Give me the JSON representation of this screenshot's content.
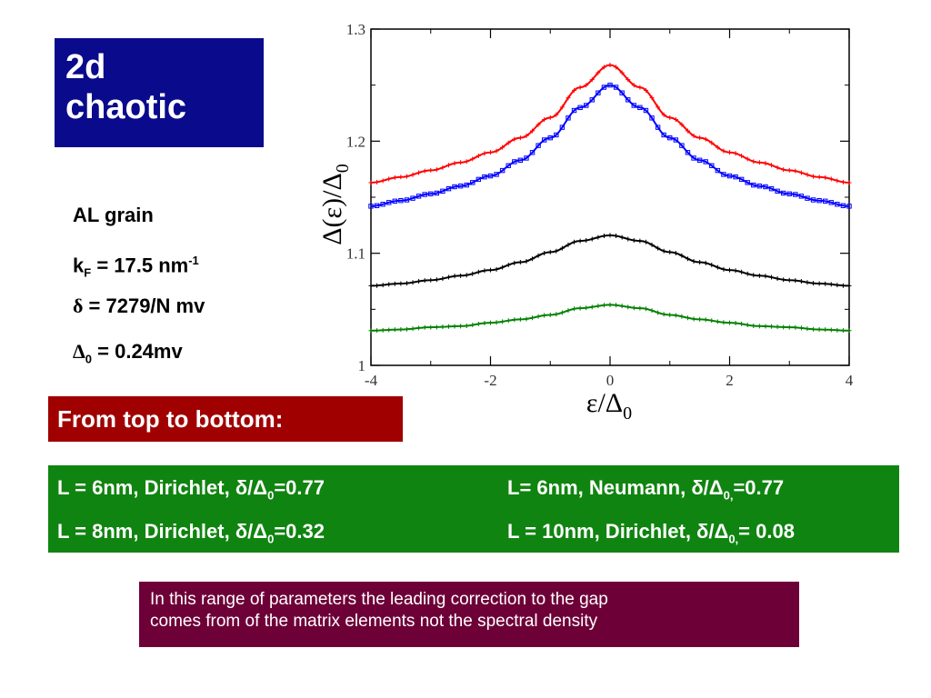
{
  "title": {
    "line1": "2d",
    "line2": "chaotic"
  },
  "params": {
    "grain": "AL grain",
    "kf_prefix": "k",
    "kf_sub": "F",
    "kf_value": " = 17.5 nm",
    "kf_sup": "-1",
    "delta_symbol": "δ",
    "delta_value": " = 7279/N mv",
    "delta0_symbol": "Δ",
    "delta0_sub": "0",
    "delta0_value": " = 0.24mv"
  },
  "order_heading": "From top to bottom:",
  "legend": {
    "c1_prefix": "L = 6nm, Dirichlet, δ/Δ",
    "c1_sub": "0",
    "c1_value": "=0.77",
    "c2_prefix": "L= 6nm, Neumann, δ/Δ",
    "c2_sub": "0,",
    "c2_value": "=0.77",
    "c3_prefix": "L = 8nm,  Dirichlet, δ/Δ",
    "c3_sub": "0",
    "c3_value": "=0.32",
    "c4_prefix": "L = 10nm, Dirichlet, δ/Δ",
    "c4_sub": "0,",
    "c4_value": "= 0.08"
  },
  "note": {
    "line1": "In this range of parameters the leading correction to the gap",
    "line2": "comes from of the matrix elements not the spectral density"
  },
  "colors": {
    "title_bg": "#0a0a8c",
    "heading_bg": "#a00000",
    "legend_bg": "#108410",
    "note_bg": "#6e0038"
  },
  "chart_data": {
    "type": "line",
    "xlabel": "ε/Δ",
    "xlabel_sub": "0",
    "ylabel": "Δ(ε)/Δ",
    "ylabel_sub": "0",
    "xlim": [
      -4,
      4
    ],
    "ylim": [
      1.0,
      1.3
    ],
    "xticks": [
      -4,
      -2,
      0,
      2,
      4
    ],
    "xtick_labels": [
      "-4",
      "-2",
      "0",
      "2",
      "4"
    ],
    "yticks": [
      1.0,
      1.1,
      1.2,
      1.3
    ],
    "ytick_labels": [
      "1",
      "1.1",
      "1.2",
      "1.3"
    ],
    "grid": false,
    "x": [
      -4,
      -3.5,
      -3,
      -2.5,
      -2,
      -1.5,
      -1,
      -0.5,
      0,
      0.5,
      1,
      1.5,
      2,
      2.5,
      3,
      3.5,
      4
    ],
    "series": [
      {
        "color": "#ff0000",
        "marker": "cross",
        "values": [
          1.163,
          1.168,
          1.174,
          1.181,
          1.19,
          1.203,
          1.221,
          1.248,
          1.268,
          1.248,
          1.221,
          1.203,
          1.19,
          1.181,
          1.174,
          1.168,
          1.163
        ]
      },
      {
        "color": "#0000ff",
        "marker": "square",
        "values": [
          1.142,
          1.147,
          1.153,
          1.16,
          1.169,
          1.183,
          1.203,
          1.23,
          1.25,
          1.23,
          1.203,
          1.183,
          1.169,
          1.16,
          1.153,
          1.147,
          1.142
        ]
      },
      {
        "color": "#000000",
        "marker": "cross",
        "values": [
          1.071,
          1.073,
          1.076,
          1.08,
          1.085,
          1.092,
          1.101,
          1.111,
          1.116,
          1.111,
          1.101,
          1.092,
          1.085,
          1.08,
          1.076,
          1.073,
          1.071
        ]
      },
      {
        "color": "#008000",
        "marker": "cross",
        "values": [
          1.031,
          1.032,
          1.034,
          1.035,
          1.038,
          1.041,
          1.045,
          1.051,
          1.054,
          1.051,
          1.045,
          1.041,
          1.038,
          1.035,
          1.034,
          1.032,
          1.031
        ]
      }
    ]
  }
}
